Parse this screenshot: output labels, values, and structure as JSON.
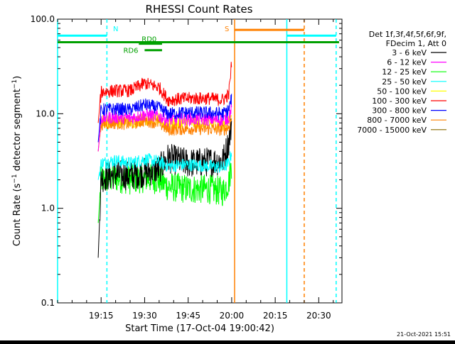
{
  "chart_data": {
    "type": "line",
    "title": "RHESSI Count Rates",
    "xlabel": "Start Time (17-Oct-04 19:00:42)",
    "ylabel_parts": {
      "before": "Count Rate (s",
      "exp": "−1",
      "after": " detector segment",
      "exp2": "−1",
      "close": ")"
    },
    "ylabel": "Count Rate (s^-1 detector segment^-1)",
    "y_scale": "log",
    "ylim": [
      0.1,
      100.0
    ],
    "x_ticks": [
      "19:15",
      "19:30",
      "19:45",
      "20:00",
      "20:15",
      "20:30"
    ],
    "y_ticks": [
      "0.1",
      "1.0",
      "10.0",
      "100.0"
    ],
    "legend": {
      "placement": "right",
      "header": [
        "Det 1f,3f,4f,5f,6f,9f,",
        "FDecim 1, Att 0"
      ],
      "entries": [
        {
          "label": "3 - 6 keV",
          "color": "#000000"
        },
        {
          "label": "6 - 12 keV",
          "color": "#ff00ff"
        },
        {
          "label": "12 - 25 keV",
          "color": "#00ff00"
        },
        {
          "label": "25 - 50 keV",
          "color": "#00ffff"
        },
        {
          "label": "50 - 100 keV",
          "color": "#ffff00"
        },
        {
          "label": "100 - 300 keV",
          "color": "#ff0000"
        },
        {
          "label": "300 - 800 keV",
          "color": "#0000ff"
        },
        {
          "label": "800 - 7000 keV",
          "color": "#ff8000"
        },
        {
          "label": "7000 - 15000 keV",
          "color": "#8b6b00"
        }
      ]
    },
    "series": [
      {
        "name": "3 - 6 keV",
        "color": "#000000",
        "x": [
          "19:14",
          "19:15",
          "19:20",
          "19:25",
          "19:30",
          "19:35",
          "19:38",
          "19:45",
          "19:52",
          "19:57",
          "19:59",
          "20:00"
        ],
        "y": [
          0.3,
          2.1,
          2.3,
          2.2,
          2.4,
          2.6,
          3.4,
          3.0,
          3.1,
          3.2,
          5.0,
          8.0
        ]
      },
      {
        "name": "6 - 12 keV",
        "color": "#ff00ff",
        "x": [
          "19:14",
          "19:15",
          "19:20",
          "19:25",
          "19:30",
          "19:35",
          "19:38",
          "19:45",
          "19:52",
          "19:57",
          "19:59",
          "20:00"
        ],
        "y": [
          4.0,
          9.0,
          9.2,
          9.0,
          9.8,
          9.4,
          8.6,
          8.8,
          8.7,
          8.6,
          9.0,
          12.0
        ]
      },
      {
        "name": "12 - 25 keV",
        "color": "#00ff00",
        "x": [
          "19:14",
          "19:15",
          "19:20",
          "19:25",
          "19:30",
          "19:35",
          "19:38",
          "19:45",
          "19:52",
          "19:57",
          "19:59",
          "20:00"
        ],
        "y": [
          0.7,
          2.0,
          2.1,
          2.0,
          2.1,
          2.0,
          1.7,
          1.6,
          1.6,
          1.5,
          1.9,
          3.0
        ]
      },
      {
        "name": "25 - 50 keV",
        "color": "#00ffff",
        "x": [
          "19:14",
          "19:15",
          "19:20",
          "19:25",
          "19:30",
          "19:35",
          "19:38",
          "19:45",
          "19:52",
          "19:57",
          "19:59",
          "20:00"
        ],
        "y": [
          2.0,
          3.0,
          3.2,
          3.0,
          3.3,
          3.1,
          2.8,
          2.9,
          2.8,
          2.7,
          3.0,
          4.0
        ]
      },
      {
        "name": "50 - 100 keV",
        "color": "#ffff00",
        "x": [
          "19:14",
          "19:15",
          "19:20",
          "19:25",
          "19:30",
          "19:35",
          "19:38",
          "19:45",
          "19:52",
          "19:57",
          "19:59",
          "20:00"
        ],
        "y": [
          4.0,
          8.2,
          8.4,
          8.2,
          8.8,
          8.5,
          7.8,
          8.0,
          7.9,
          7.8,
          8.2,
          11.0
        ]
      },
      {
        "name": "100 - 300 keV",
        "color": "#ff0000",
        "x": [
          "19:14",
          "19:15",
          "19:20",
          "19:25",
          "19:30",
          "19:35",
          "19:38",
          "19:45",
          "19:52",
          "19:57",
          "19:59",
          "20:00"
        ],
        "y": [
          8.0,
          17.0,
          17.5,
          17.5,
          21.0,
          19.0,
          14.0,
          14.5,
          14.5,
          14.0,
          16.0,
          35.0
        ]
      },
      {
        "name": "300 - 800 keV",
        "color": "#0000ff",
        "x": [
          "19:14",
          "19:15",
          "19:20",
          "19:25",
          "19:30",
          "19:35",
          "19:38",
          "19:45",
          "19:52",
          "19:57",
          "19:59",
          "20:00"
        ],
        "y": [
          5.0,
          11.0,
          11.2,
          11.0,
          12.5,
          11.5,
          10.0,
          10.3,
          10.2,
          10.0,
          11.0,
          15.0
        ]
      },
      {
        "name": "800 - 7000 keV",
        "color": "#ff8000",
        "x": [
          "19:14",
          "19:15",
          "19:20",
          "19:25",
          "19:30",
          "19:35",
          "19:38",
          "19:45",
          "19:52",
          "19:57",
          "19:59",
          "20:00"
        ],
        "y": [
          4.0,
          7.8,
          8.0,
          7.8,
          8.5,
          8.0,
          6.8,
          7.0,
          6.9,
          6.8,
          7.2,
          9.0
        ]
      }
    ],
    "markers": [
      {
        "label": "N",
        "color": "#00ffff",
        "x_start": "19:00",
        "x_end": "19:17",
        "y": 67
      },
      {
        "label": "",
        "color": "#00ffff",
        "x_start": "20:19",
        "x_end": "20:36",
        "y": 67
      },
      {
        "label": "S",
        "color": "#ff8000",
        "x_start": "20:01",
        "x_end": "20:25",
        "y": 77
      },
      {
        "label": "",
        "color": "#00a000",
        "x_start": "19:00",
        "x_end": "20:37",
        "y": 57
      }
    ],
    "decimation_labels": [
      {
        "label": "RD0",
        "color": "#00a000",
        "x_start": "19:28",
        "x_end": "19:36",
        "y": 55
      },
      {
        "label": "RD6",
        "color": "#00a000",
        "x_start": "19:30",
        "x_end": "19:36",
        "y": 47
      }
    ],
    "vertical_lines": [
      {
        "x": "19:00",
        "color": "#00ffff",
        "style": "solid"
      },
      {
        "x": "19:17",
        "color": "#00ffff",
        "style": "dashed"
      },
      {
        "x": "20:01",
        "color": "#ff8000",
        "style": "solid"
      },
      {
        "x": "20:19",
        "color": "#00ffff",
        "style": "solid"
      },
      {
        "x": "20:25",
        "color": "#ff8000",
        "style": "dashed"
      },
      {
        "x": "20:36",
        "color": "#00ffff",
        "style": "dashed"
      }
    ]
  },
  "footer": {
    "timestamp": "21-Oct-2021 15:51"
  }
}
